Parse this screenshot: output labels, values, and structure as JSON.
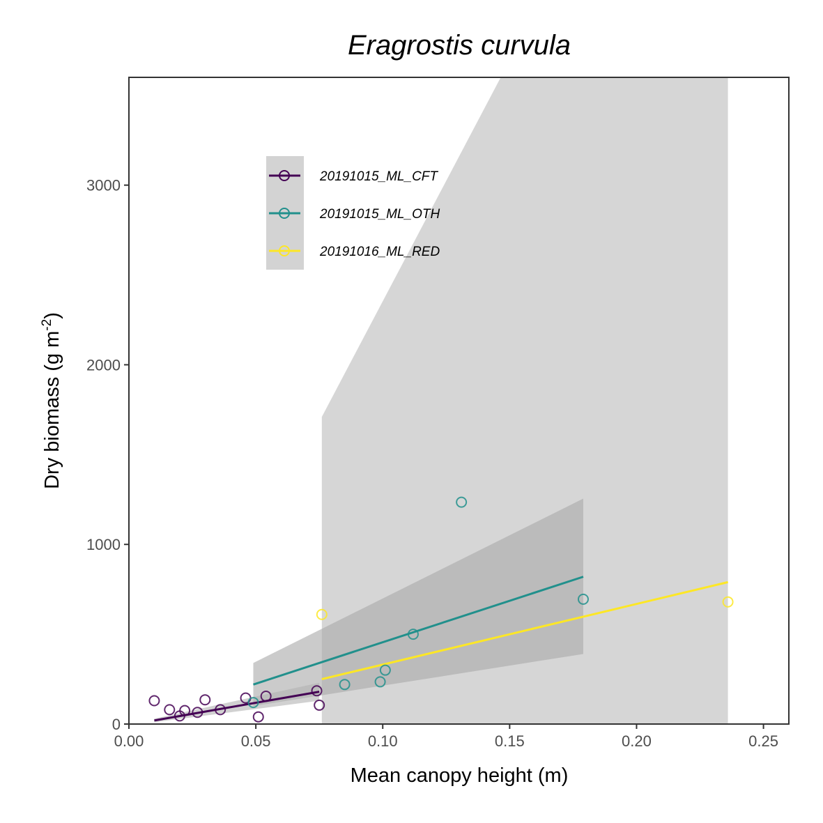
{
  "chart_data": {
    "type": "scatter",
    "title": "Eragrostis curvula",
    "xlabel": "Mean canopy height (m)",
    "ylabel": "Dry biomass (g m-2)",
    "ylabel_parts": {
      "main": "Dry biomass (g m",
      "sup": "-2",
      "close": ")"
    },
    "xlim": [
      0.0,
      0.26
    ],
    "ylim": [
      0,
      3600
    ],
    "x_ticks": [
      0.0,
      0.05,
      0.1,
      0.15,
      0.2,
      0.25
    ],
    "x_tick_labels": [
      "0.00",
      "0.05",
      "0.10",
      "0.15",
      "0.20",
      "0.25"
    ],
    "y_ticks": [
      0,
      1000,
      2000,
      3000
    ],
    "y_tick_labels": [
      "0",
      "1000",
      "2000",
      "3000"
    ],
    "grid": false,
    "legend_position": "top-left inside",
    "series": [
      {
        "name": "20191015_ML_CFT",
        "color": "#440154",
        "points": [
          [
            0.01,
            130
          ],
          [
            0.016,
            80
          ],
          [
            0.02,
            45
          ],
          [
            0.022,
            75
          ],
          [
            0.027,
            65
          ],
          [
            0.03,
            135
          ],
          [
            0.036,
            80
          ],
          [
            0.046,
            145
          ],
          [
            0.051,
            40
          ],
          [
            0.054,
            155
          ],
          [
            0.074,
            185
          ],
          [
            0.075,
            105
          ]
        ],
        "fit": {
          "x": [
            0.01,
            0.075
          ],
          "y": [
            20,
            180
          ]
        },
        "band": {
          "x": [
            0.01,
            0.075
          ],
          "lower": [
            10,
            130
          ],
          "upper": [
            30,
            230
          ]
        }
      },
      {
        "name": "20191015_ML_OTH",
        "color": "#21908C",
        "points": [
          [
            0.049,
            120
          ],
          [
            0.085,
            220
          ],
          [
            0.099,
            235
          ],
          [
            0.101,
            300
          ],
          [
            0.112,
            500
          ],
          [
            0.131,
            1235
          ],
          [
            0.179,
            695
          ]
        ],
        "fit": {
          "x": [
            0.049,
            0.179
          ],
          "y": [
            220,
            820
          ]
        },
        "band": {
          "x": [
            0.049,
            0.179
          ],
          "lower": [
            100,
            390
          ],
          "upper": [
            340,
            1255
          ]
        }
      },
      {
        "name": "20191016_ML_RED",
        "color": "#FDE725",
        "points": [
          [
            0.076,
            610
          ],
          [
            0.236,
            680
          ]
        ],
        "fit": {
          "x": [
            0.076,
            0.236
          ],
          "y": [
            250,
            790
          ]
        },
        "band": {
          "x": [
            0.076,
            0.236
          ],
          "lower": [
            0,
            0
          ],
          "upper": [
            1710,
            6000
          ]
        }
      }
    ]
  }
}
